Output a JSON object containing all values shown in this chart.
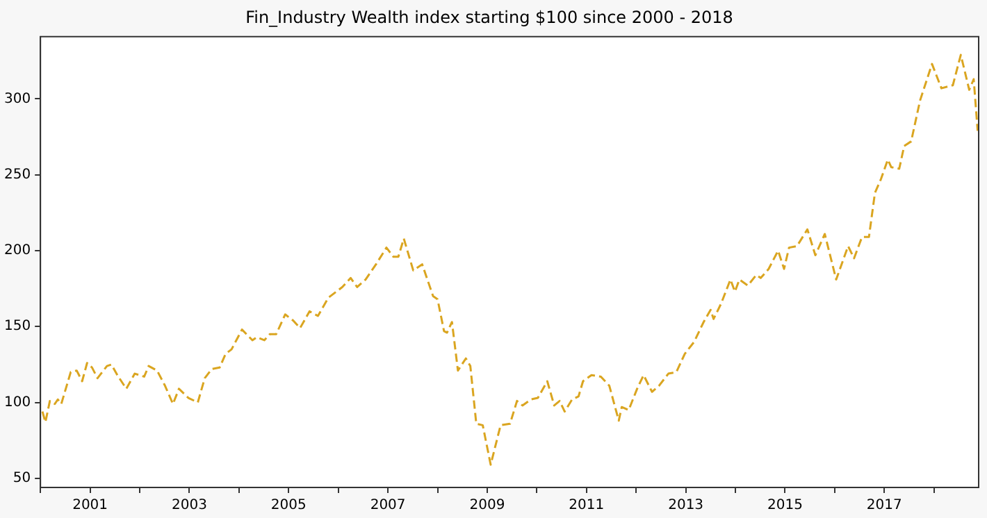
{
  "chart_data": {
    "type": "line",
    "title": "Fin_Industry Wealth index starting $100 since 2000 - 2018",
    "x": [
      2000.04,
      2000.1,
      2000.19,
      2000.29,
      2000.35,
      2000.42,
      2000.61,
      2000.73,
      2000.84,
      2000.94,
      2001.04,
      2001.15,
      2001.34,
      2001.43,
      2001.55,
      2001.73,
      2001.9,
      2002.09,
      2002.18,
      2002.35,
      2002.51,
      2002.67,
      2002.79,
      2002.98,
      2003.17,
      2003.31,
      2003.45,
      2003.61,
      2003.73,
      2003.85,
      2004.06,
      2004.27,
      2004.36,
      2004.51,
      2004.62,
      2004.75,
      2004.93,
      2005.09,
      2005.23,
      2005.42,
      2005.59,
      2005.8,
      2006.08,
      2006.25,
      2006.38,
      2006.55,
      2006.76,
      2006.97,
      2007.11,
      2007.21,
      2007.32,
      2007.51,
      2007.69,
      2007.91,
      2008.0,
      2008.13,
      2008.19,
      2008.29,
      2008.41,
      2008.57,
      2008.66,
      2008.78,
      2008.91,
      2009.07,
      2009.27,
      2009.46,
      2009.6,
      2009.71,
      2009.88,
      2010.02,
      2010.21,
      2010.35,
      2010.46,
      2010.56,
      2010.71,
      2010.84,
      2010.93,
      2011.1,
      2011.29,
      2011.46,
      2011.65,
      2011.71,
      2011.85,
      2012.02,
      2012.15,
      2012.32,
      2012.46,
      2012.65,
      2012.81,
      2012.98,
      2013.17,
      2013.36,
      2013.5,
      2013.56,
      2013.71,
      2013.9,
      2013.99,
      2014.08,
      2014.25,
      2014.42,
      2014.51,
      2014.67,
      2014.86,
      2014.98,
      2015.08,
      2015.24,
      2015.45,
      2015.61,
      2015.8,
      2016.03,
      2016.27,
      2016.39,
      2016.55,
      2016.69,
      2016.81,
      2016.93,
      2017.07,
      2017.14,
      2017.3,
      2017.4,
      2017.54,
      2017.72,
      2017.96,
      2018.15,
      2018.38,
      2018.54,
      2018.71,
      2018.8,
      2018.88
    ],
    "series": [
      {
        "color": "#daa520",
        "values": [
          94,
          87,
          101,
          99,
          102,
          99,
          120,
          121,
          114,
          126,
          123,
          116,
          124,
          125,
          118,
          109,
          119,
          117,
          124,
          121,
          111,
          99,
          109,
          103,
          100,
          116,
          122,
          123,
          132,
          135,
          148,
          141,
          143,
          141,
          145,
          145,
          158,
          154,
          149,
          160,
          157,
          169,
          176,
          182,
          176,
          181,
          191,
          202,
          196,
          196,
          208,
          187,
          191,
          170,
          168,
          147,
          146,
          153,
          121,
          129,
          124,
          86,
          85,
          59,
          85,
          86,
          101,
          98,
          102,
          103,
          114,
          98,
          101,
          94,
          102,
          104,
          114,
          118,
          117,
          111,
          88,
          97,
          95,
          109,
          118,
          107,
          111,
          119,
          120,
          132,
          140,
          153,
          161,
          155,
          165,
          181,
          173,
          181,
          177,
          184,
          182,
          188,
          200,
          188,
          202,
          203,
          214,
          197,
          211,
          181,
          203,
          195,
          209,
          209,
          238,
          247,
          260,
          255,
          254,
          269,
          272,
          299,
          323,
          307,
          309,
          329,
          306,
          313,
          279
        ]
      }
    ],
    "xlim": [
      2000,
      2018.9
    ],
    "xticks": [
      {
        "value": 2000,
        "label": null
      },
      2001,
      {
        "value": 2002,
        "label": null
      },
      2003,
      {
        "value": 2004,
        "label": null
      },
      2005,
      {
        "value": 2006,
        "label": null
      },
      2007,
      {
        "value": 2008,
        "label": null
      },
      2009,
      {
        "value": 2010,
        "label": null
      },
      2011,
      {
        "value": 2012,
        "label": null
      },
      2013,
      {
        "value": 2014,
        "label": null
      },
      2015,
      {
        "value": 2016,
        "label": null
      },
      2017,
      {
        "value": 2018,
        "label": null
      }
    ],
    "ylim": [
      44,
      341
    ],
    "yticks": [
      50,
      100,
      150,
      200,
      250,
      300
    ],
    "grid": false,
    "legend": false,
    "marker": "none",
    "line_style": "dashed"
  }
}
